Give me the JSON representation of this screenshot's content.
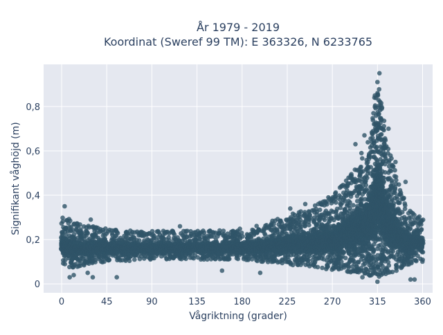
{
  "chart_data": {
    "type": "scatter",
    "title_line1": "År 1979 - 2019",
    "title_line2": "Koordinat (Sweref 99 TM): E 363326, N 6233765",
    "xlabel": "Vågriktning (grader)",
    "ylabel": "Signifikant våghöjd (m)",
    "xlim": [
      -18,
      370
    ],
    "ylim": [
      -0.04,
      0.99
    ],
    "xticks": [
      0,
      45,
      90,
      135,
      180,
      225,
      270,
      315,
      360
    ],
    "xtick_labels": [
      "0",
      "45",
      "90",
      "135",
      "180",
      "225",
      "270",
      "315",
      "360"
    ],
    "yticks": [
      0,
      0.2,
      0.4,
      0.6,
      0.8
    ],
    "ytick_labels": [
      "0",
      "0,2",
      "0,4",
      "0,6",
      "0,8"
    ],
    "grid": true,
    "marker_color": "#2f5468",
    "background_color": "#e5e8f0",
    "series": [
      {
        "envelope_x": [
          0,
          10,
          20,
          30,
          45,
          60,
          90,
          120,
          150,
          180,
          200,
          220,
          240,
          260,
          270,
          280,
          290,
          300,
          305,
          310,
          315,
          320,
          325,
          330,
          335,
          340,
          345,
          350,
          360
        ],
        "envelope_ymin": [
          0.09,
          0.07,
          0.08,
          0.09,
          0.1,
          0.1,
          0.11,
          0.11,
          0.11,
          0.11,
          0.1,
          0.09,
          0.08,
          0.07,
          0.06,
          0.06,
          0.05,
          0.05,
          0.04,
          0.03,
          0.03,
          0.03,
          0.04,
          0.05,
          0.06,
          0.07,
          0.08,
          0.09,
          0.1
        ],
        "envelope_ymax": [
          0.3,
          0.29,
          0.27,
          0.26,
          0.25,
          0.24,
          0.24,
          0.24,
          0.24,
          0.25,
          0.27,
          0.3,
          0.33,
          0.37,
          0.4,
          0.45,
          0.5,
          0.57,
          0.63,
          0.75,
          0.93,
          0.8,
          0.63,
          0.55,
          0.47,
          0.4,
          0.35,
          0.32,
          0.3
        ],
        "outliers": [
          [
            3,
            0.35
          ],
          [
            8,
            0.03
          ],
          [
            12,
            0.04
          ],
          [
            26,
            0.05
          ],
          [
            29,
            0.29
          ],
          [
            31,
            0.03
          ],
          [
            55,
            0.03
          ],
          [
            118,
            0.26
          ],
          [
            160,
            0.06
          ],
          [
            198,
            0.05
          ],
          [
            228,
            0.34
          ],
          [
            243,
            0.36
          ],
          [
            266,
            0.39
          ],
          [
            293,
            0.63
          ],
          [
            299,
            0.59
          ],
          [
            302,
            0.67
          ],
          [
            312,
            0.84
          ],
          [
            315,
            0.91
          ],
          [
            317,
            0.95
          ],
          [
            326,
            0.7
          ],
          [
            333,
            0.55
          ],
          [
            343,
            0.46
          ],
          [
            348,
            0.02
          ],
          [
            352,
            0.02
          ],
          [
            300,
            0.03
          ],
          [
            315,
            0.01
          ]
        ]
      }
    ]
  }
}
